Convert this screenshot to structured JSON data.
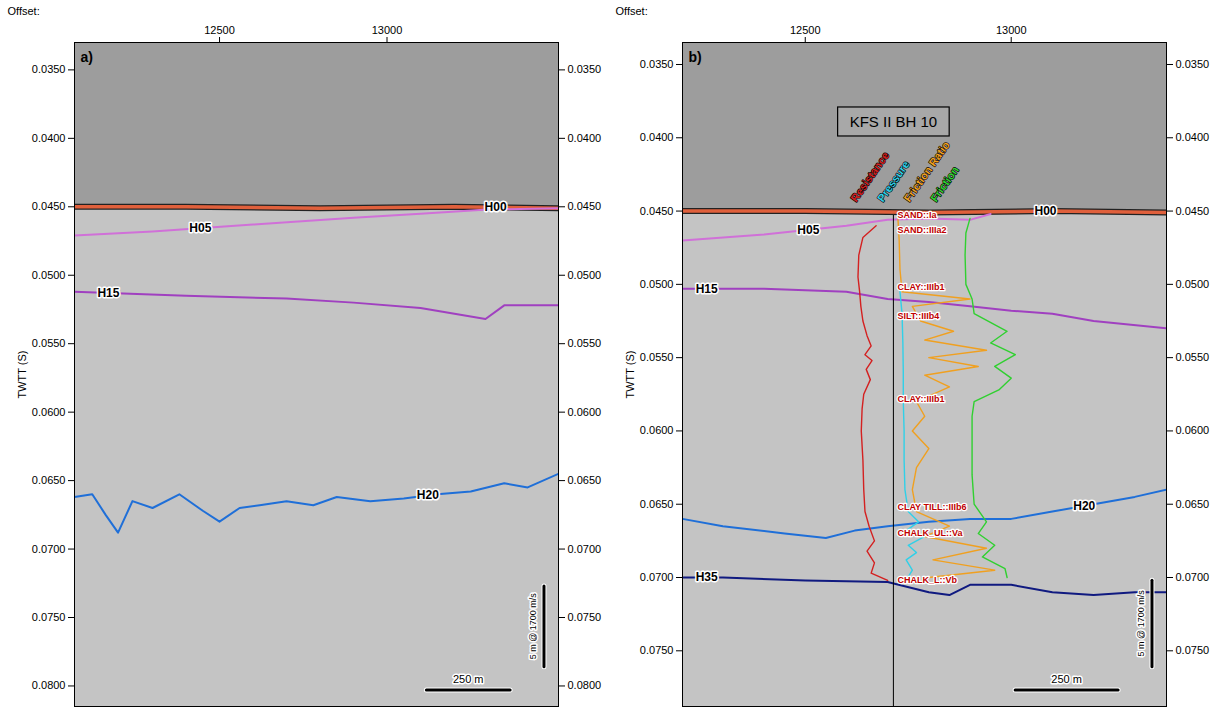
{
  "chart_data": [
    {
      "type": "line",
      "panel": "a)",
      "x_label": "Offset:",
      "y_label": "TWTT (S)",
      "xlim": [
        12067,
        13512
      ],
      "xticks": [
        12500,
        13000
      ],
      "ylim": [
        0.033,
        0.0815
      ],
      "yticks": [
        {
          "value": 0.035,
          "label": "0.0350"
        },
        {
          "value": 0.04,
          "label": "0.0400"
        },
        {
          "value": 0.045,
          "label": "0.0450"
        },
        {
          "value": 0.05,
          "label": "0.0500"
        },
        {
          "value": 0.055,
          "label": "0.0550"
        },
        {
          "value": 0.06,
          "label": "0.0600"
        },
        {
          "value": 0.065,
          "label": "0.0650"
        },
        {
          "value": 0.07,
          "label": "0.0700"
        },
        {
          "value": 0.075,
          "label": "0.0750"
        },
        {
          "value": 0.08,
          "label": "0.0800"
        }
      ],
      "series": [
        {
          "name": "H00",
          "color": "#e0603c",
          "x": [
            12067,
            12400,
            12800,
            13200,
            13512
          ],
          "values": [
            0.045,
            0.045,
            0.0451,
            0.045,
            0.0451
          ]
        },
        {
          "name": "H05",
          "color": "#d070d8",
          "x": [
            12067,
            12300,
            12600,
            12900,
            13100,
            13300,
            13512
          ],
          "values": [
            0.0471,
            0.0468,
            0.0463,
            0.0458,
            0.0455,
            0.0452,
            0.0451
          ]
        },
        {
          "name": "H15",
          "color": "#a040c0",
          "x": [
            12067,
            12400,
            12700,
            12900,
            13100,
            13294,
            13350,
            13512
          ],
          "values": [
            0.0512,
            0.0515,
            0.0517,
            0.052,
            0.0524,
            0.0532,
            0.0522,
            0.0522
          ]
        },
        {
          "name": "H20",
          "color": "#1f6fd8",
          "x": [
            12067,
            12120,
            12160,
            12197,
            12240,
            12300,
            12380,
            12450,
            12500,
            12560,
            12620,
            12700,
            12780,
            12850,
            12950,
            13050,
            13150,
            13250,
            13350,
            13420,
            13512
          ],
          "values": [
            0.0662,
            0.066,
            0.0675,
            0.0688,
            0.0665,
            0.067,
            0.066,
            0.0672,
            0.068,
            0.067,
            0.0668,
            0.0665,
            0.0668,
            0.0662,
            0.0665,
            0.0663,
            0.066,
            0.0658,
            0.0652,
            0.0655,
            0.0645
          ]
        }
      ],
      "scale_bars": [
        {
          "label": "250 m",
          "length": 250
        },
        {
          "label": "5 m @ 1700 m/s",
          "length": 0.0059
        }
      ]
    },
    {
      "type": "line",
      "panel": "b)",
      "x_label": "Offset:",
      "y_label": "TWTT (S)",
      "xlim": [
        12202,
        13377
      ],
      "xticks": [
        12500,
        13000
      ],
      "ylim": [
        0.0335,
        0.0788
      ],
      "yticks": [
        {
          "value": 0.035,
          "label": "0.0350"
        },
        {
          "value": 0.04,
          "label": "0.0400"
        },
        {
          "value": 0.045,
          "label": "0.0450"
        },
        {
          "value": 0.05,
          "label": "0.0500"
        },
        {
          "value": 0.055,
          "label": "0.0550"
        },
        {
          "value": 0.06,
          "label": "0.0600"
        },
        {
          "value": 0.065,
          "label": "0.0650"
        },
        {
          "value": 0.07,
          "label": "0.0700"
        },
        {
          "value": 0.075,
          "label": "0.0750"
        }
      ],
      "series": [
        {
          "name": "H00",
          "color": "#e0603c",
          "x": [
            12202,
            12500,
            12800,
            13100,
            13377
          ],
          "values": [
            0.045,
            0.045,
            0.0451,
            0.045,
            0.0451
          ]
        },
        {
          "name": "H05",
          "color": "#d070d8",
          "x": [
            12202,
            12400,
            12600,
            12700,
            12800,
            12900,
            12950
          ],
          "values": [
            0.047,
            0.0466,
            0.046,
            0.0456,
            0.0455,
            0.0456,
            0.0452
          ]
        },
        {
          "name": "H15",
          "color": "#a040c0",
          "x": [
            12202,
            12400,
            12600,
            12700,
            12800,
            12900,
            13000,
            13100,
            13200,
            13377
          ],
          "values": [
            0.0503,
            0.0503,
            0.0505,
            0.051,
            0.0512,
            0.0515,
            0.0518,
            0.052,
            0.0525,
            0.053
          ]
        },
        {
          "name": "H20",
          "color": "#1f6fd8",
          "x": [
            12202,
            12300,
            12450,
            12550,
            12620,
            12700,
            12800,
            12900,
            13000,
            13100,
            13200,
            13300,
            13377
          ],
          "values": [
            0.066,
            0.0665,
            0.067,
            0.0673,
            0.0668,
            0.0665,
            0.0662,
            0.066,
            0.066,
            0.0655,
            0.065,
            0.0645,
            0.064
          ]
        },
        {
          "name": "H35",
          "color": "#101a80",
          "x": [
            12202,
            12300,
            12500,
            12700,
            12800,
            12850,
            12900,
            13000,
            13100,
            13200,
            13300,
            13377
          ],
          "values": [
            0.07,
            0.07,
            0.0702,
            0.0703,
            0.071,
            0.0712,
            0.0705,
            0.0705,
            0.071,
            0.0712,
            0.071,
            0.071
          ]
        }
      ],
      "borehole": {
        "name": "KFS II BH 10",
        "x": 12714
      },
      "logs": [
        {
          "name": "Resistance",
          "color": "#d42020",
          "x": [
            12672,
            12640,
            12630,
            12628,
            12632,
            12635,
            12640,
            12650,
            12660,
            12645,
            12662,
            12648,
            12658,
            12642,
            12638,
            12636,
            12640,
            12642,
            12645,
            12655,
            12668,
            12650,
            12668,
            12660,
            12700
          ],
          "values": [
            0.046,
            0.0468,
            0.048,
            0.0495,
            0.0505,
            0.0515,
            0.0525,
            0.0535,
            0.0542,
            0.0548,
            0.0552,
            0.0558,
            0.0565,
            0.0575,
            0.0585,
            0.06,
            0.062,
            0.064,
            0.0655,
            0.0665,
            0.0675,
            0.0682,
            0.069,
            0.0697,
            0.0702
          ]
        },
        {
          "name": "Pressure",
          "color": "#30d0e8",
          "x": [
            12730,
            12735,
            12737,
            12738,
            12738,
            12740,
            12740,
            12742,
            12750,
            12775,
            12745,
            12790,
            12750,
            12770,
            12745,
            12760,
            12745
          ],
          "values": [
            0.0505,
            0.052,
            0.054,
            0.056,
            0.058,
            0.06,
            0.062,
            0.064,
            0.0655,
            0.0662,
            0.0668,
            0.0672,
            0.0678,
            0.0683,
            0.0688,
            0.0695,
            0.0702
          ]
        },
        {
          "name": "Friction Ratio",
          "color": "#f0a020",
          "x": [
            12725,
            12728,
            12730,
            12735,
            12900,
            12760,
            12780,
            12860,
            12790,
            12940,
            12800,
            12920,
            12790,
            12850,
            12770,
            12790,
            12760,
            12800,
            12770,
            12760,
            12770,
            12850,
            12790,
            12940,
            12810,
            12960,
            12800
          ],
          "values": [
            0.0455,
            0.047,
            0.049,
            0.0505,
            0.051,
            0.0515,
            0.0525,
            0.0532,
            0.0538,
            0.0545,
            0.055,
            0.0556,
            0.0562,
            0.057,
            0.058,
            0.059,
            0.06,
            0.0612,
            0.0625,
            0.064,
            0.0655,
            0.0665,
            0.0672,
            0.068,
            0.0688,
            0.0695,
            0.07
          ]
        },
        {
          "name": "Friction",
          "color": "#30d030",
          "x": [
            12900,
            12890,
            12888,
            12890,
            12905,
            12910,
            12990,
            12950,
            13010,
            12960,
            13000,
            12970,
            12910,
            12905,
            12905,
            12905,
            12910,
            12940,
            12920,
            12960,
            12930,
            12985,
            12990
          ],
          "values": [
            0.0455,
            0.0465,
            0.048,
            0.05,
            0.051,
            0.052,
            0.0532,
            0.054,
            0.0548,
            0.0556,
            0.0564,
            0.0572,
            0.058,
            0.059,
            0.061,
            0.063,
            0.065,
            0.0662,
            0.067,
            0.0678,
            0.0686,
            0.0694,
            0.07
          ]
        }
      ],
      "lithology": [
        {
          "label": "SAND::Ia",
          "value": 0.0453
        },
        {
          "label": "SAND::IIIa2",
          "value": 0.0463
        },
        {
          "label": "CLAY::IIIb1",
          "value": 0.0502
        },
        {
          "label": "SILT::IIIb4",
          "value": 0.0522
        },
        {
          "label": "CLAY::IIIb1",
          "value": 0.0578
        },
        {
          "label": "CLAY TILL::IIIb6",
          "value": 0.0652
        },
        {
          "label": "CHALK_UL::Va",
          "value": 0.067
        },
        {
          "label": "CHALK_L::Vb",
          "value": 0.0702
        }
      ],
      "scale_bars": [
        {
          "label": "250 m",
          "length": 250
        },
        {
          "label": "5 m @ 1700 m/s",
          "length": 0.0059
        }
      ]
    }
  ]
}
